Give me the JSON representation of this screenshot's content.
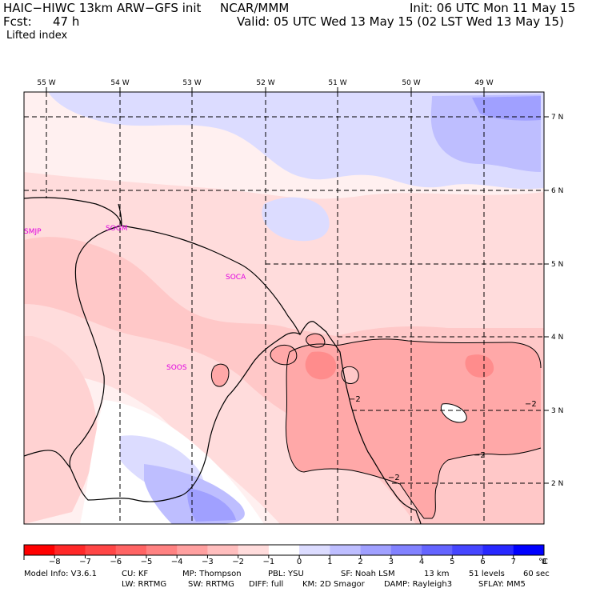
{
  "header": {
    "model": "HAIC−HIWC 13km ARW−GFS init",
    "center": "NCAR/MMM",
    "init": "Init: 06 UTC Mon 11 May 15",
    "fcst_label": "Fcst:",
    "fcst_value": "47 h",
    "valid": "Valid: 05 UTC Wed 13 May 15 (02 LST Wed 13 May 15)",
    "field": "Lifted index"
  },
  "map": {
    "lon_labels": [
      "55 W",
      "54 W",
      "53 W",
      "52 W",
      "51 W",
      "50 W",
      "49 W"
    ],
    "lat_labels": [
      "7 N",
      "6 N",
      "5 N",
      "4 N",
      "3 N",
      "2 N"
    ],
    "stations": [
      "SMJP",
      "SOGM",
      "SOCA",
      "SOOS"
    ],
    "contour_labels": [
      "−2",
      "−2",
      "−2",
      "−2"
    ]
  },
  "colorbar": {
    "tick_labels": [
      "−8",
      "−7",
      "−6",
      "−5",
      "−4",
      "−3",
      "−2",
      "−1",
      "0",
      "1",
      "2",
      "3",
      "4",
      "5",
      "6",
      "7",
      "8"
    ],
    "unit": "°C",
    "colors": [
      "#ff0000",
      "#ff2828",
      "#ff4646",
      "#ff6464",
      "#ff8282",
      "#ffa0a0",
      "#ffbebe",
      "#ffdcdc",
      "#ffffff",
      "#dcdcff",
      "#bebeff",
      "#a0a0ff",
      "#8282ff",
      "#6464ff",
      "#4646ff",
      "#2828ff",
      "#0000ff"
    ]
  },
  "footer": {
    "line1": {
      "model_info": "Model Info: V3.6.1",
      "cu": "CU: KF",
      "mp": "MP: Thompson",
      "pbl": "PBL: YSU",
      "sf": "SF: Noah LSM",
      "res": "13 km",
      "levels": "51 levels",
      "dt": "60 sec"
    },
    "line2": {
      "lw": "LW: RRTMG",
      "sw": "SW: RRTMG",
      "diff": "DIFF: full",
      "km": "KM: 2D Smagor",
      "damp": "DAMP: Rayleigh3",
      "sflay": "SFLAY: MM5"
    }
  }
}
